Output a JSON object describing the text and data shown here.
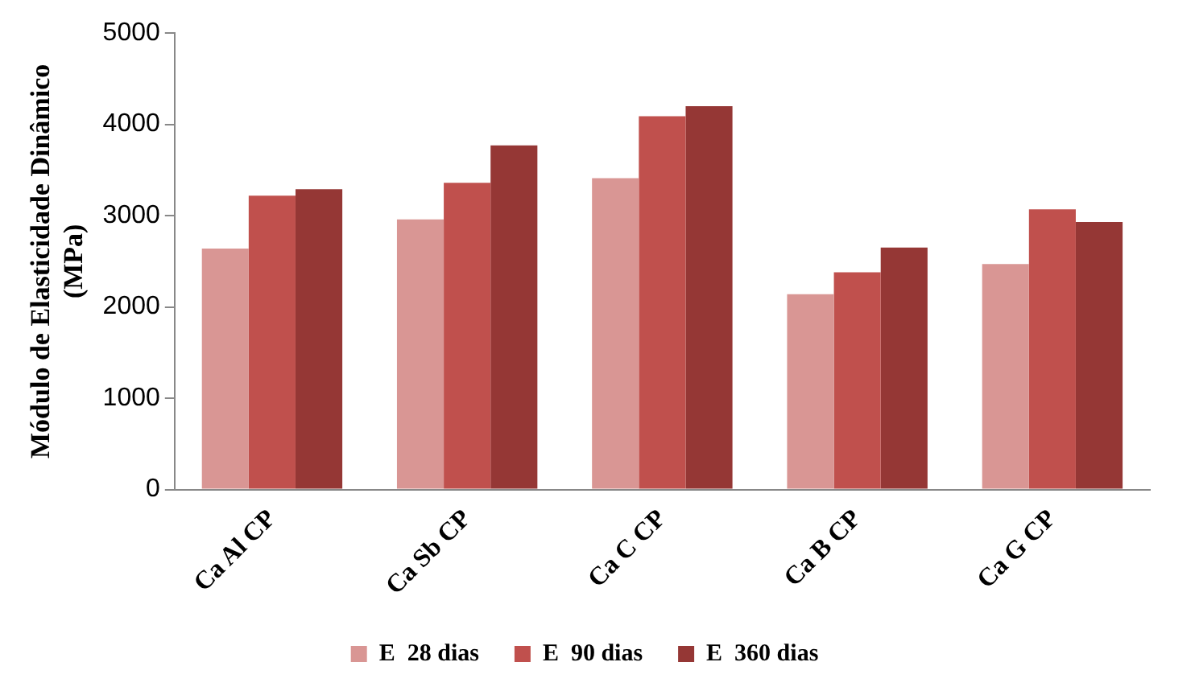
{
  "chart_data": {
    "type": "bar",
    "ylabel": "Módulo de Elasticidade Dinâmico (MPa)",
    "categories": [
      "Ca Al CP",
      "Ca Sb CP",
      "Ca C CP",
      "Ca B CP",
      "Ca G CP"
    ],
    "series": [
      {
        "name": "E  28 dias",
        "color": "#d99694",
        "values": [
          2640,
          2960,
          3410,
          2140,
          2470
        ]
      },
      {
        "name": "E  90 dias",
        "color": "#c0504d",
        "values": [
          3220,
          3360,
          4090,
          2380,
          3070
        ]
      },
      {
        "name": "E  360 dias",
        "color": "#953735",
        "values": [
          3290,
          3770,
          4200,
          2650,
          2930
        ]
      }
    ],
    "ylim": [
      0,
      5000
    ],
    "yticks": [
      0,
      1000,
      2000,
      3000,
      4000,
      5000
    ],
    "grid": false,
    "legend": "bottom"
  }
}
